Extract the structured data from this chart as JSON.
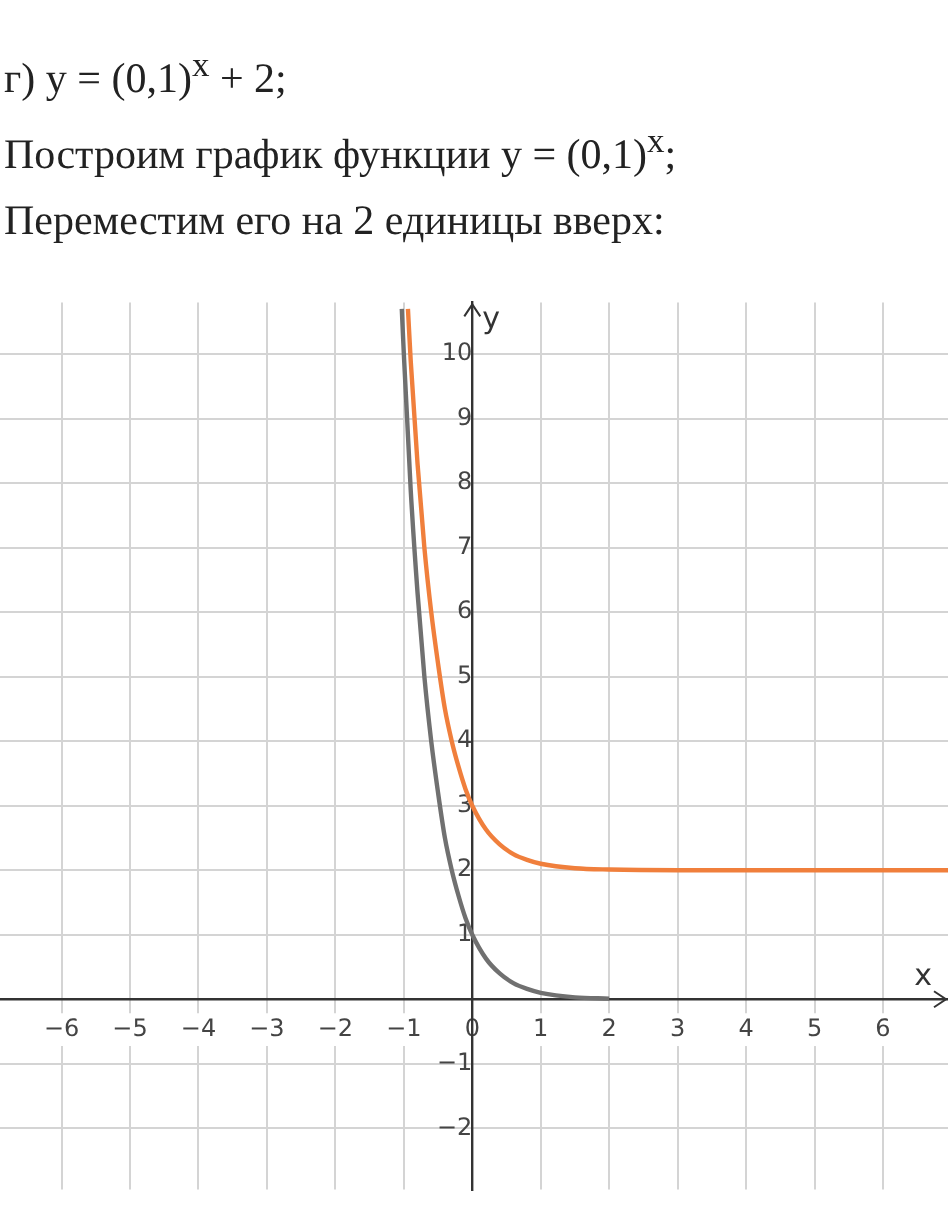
{
  "chart_data": {
    "type": "line",
    "title": "г) y = (0,1)$^{x}$ + 2;",
    "subtitle": "Построим график функции y = (0,1)$^{x}$;",
    "annotations": [
      "Переместим его на 2 единицы вверх:"
    ],
    "xlabel": "x",
    "ylabel": "y",
    "xlim": [
      -6.9,
      6.95
    ],
    "ylim": [
      -2.95,
      10.8
    ],
    "xticks": [
      -6,
      -5,
      -4,
      -3,
      -2,
      -1,
      0,
      1,
      2,
      3,
      4,
      5,
      6
    ],
    "yticks": [
      -2,
      -1,
      {
        "value": 0,
        "label": null
      },
      1,
      2,
      3,
      4,
      5,
      6,
      7,
      8,
      9,
      10
    ],
    "grid": true,
    "legend": false,
    "marker": "none",
    "line_style": "solid",
    "series": [
      {
        "color": "#707070",
        "x": [
          -1.03,
          -1,
          -0.9,
          -0.8,
          -0.7,
          -0.6,
          -0.5,
          -0.4,
          -0.3,
          -0.2,
          -0.1,
          0,
          0.2,
          0.4,
          0.6,
          0.8,
          1,
          1.5,
          2
        ],
        "values": [
          10.7,
          10,
          7.9,
          6.3,
          5,
          4,
          3.2,
          2.5,
          2,
          1.6,
          1.26,
          1,
          0.63,
          0.4,
          0.25,
          0.16,
          0.1,
          0.03,
          0.01
        ]
      },
      {
        "color": "#f07f3c",
        "x": [
          -0.94,
          -0.9,
          -0.8,
          -0.7,
          -0.6,
          -0.5,
          -0.4,
          -0.3,
          -0.2,
          -0.1,
          0,
          0.2,
          0.4,
          0.6,
          0.8,
          1,
          1.5,
          2,
          3,
          6.95
        ],
        "values": [
          10.7,
          9.9,
          8.3,
          7,
          6,
          5.2,
          4.5,
          4,
          3.6,
          3.26,
          3,
          2.63,
          2.4,
          2.25,
          2.16,
          2.1,
          2.03,
          2.01,
          2,
          2
        ]
      }
    ]
  }
}
